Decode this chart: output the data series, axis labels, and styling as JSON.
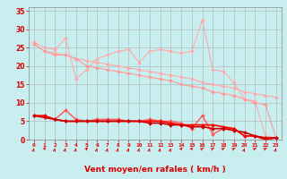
{
  "bg_color": "#c8eef0",
  "grid_color": "#b0b0b0",
  "xlabel": "Vent moyen/en rafales ( km/h )",
  "x_ticks": [
    0,
    1,
    2,
    3,
    4,
    5,
    6,
    7,
    8,
    9,
    10,
    11,
    12,
    13,
    14,
    15,
    16,
    17,
    18,
    19,
    20,
    21,
    22,
    23
  ],
  "ylim": [
    0,
    36
  ],
  "yticks": [
    0,
    5,
    10,
    15,
    20,
    25,
    30,
    35
  ],
  "xlim": [
    -0.5,
    23.5
  ],
  "lines": [
    {
      "color": "#ffaaaa",
      "linewidth": 0.8,
      "marker": "D",
      "markersize": 2.0,
      "data_x": [
        0,
        1,
        2,
        3,
        4,
        5,
        6,
        7,
        8,
        9,
        10,
        11,
        12,
        13,
        14,
        15,
        16,
        17,
        18,
        19,
        20,
        21,
        22,
        23
      ],
      "data_y": [
        26.5,
        25.0,
        24.5,
        27.5,
        16.5,
        19.0,
        22.0,
        23.0,
        24.0,
        24.5,
        21.0,
        24.0,
        24.5,
        24.0,
        23.5,
        24.0,
        32.5,
        19.0,
        18.5,
        15.5,
        11.0,
        10.5,
        1.0,
        0.5
      ]
    },
    {
      "color": "#ffaaaa",
      "linewidth": 0.8,
      "marker": "D",
      "markersize": 2.0,
      "data_x": [
        0,
        1,
        2,
        3,
        4,
        5,
        6,
        7,
        8,
        9,
        10,
        11,
        12,
        13,
        14,
        15,
        16,
        17,
        18,
        19,
        20,
        21,
        22,
        23
      ],
      "data_y": [
        26.0,
        24.0,
        23.5,
        23.0,
        22.0,
        21.5,
        21.0,
        20.5,
        20.0,
        19.5,
        19.0,
        18.5,
        18.0,
        17.5,
        17.0,
        16.5,
        15.5,
        15.0,
        14.5,
        14.0,
        13.0,
        12.5,
        12.0,
        11.5
      ]
    },
    {
      "color": "#ff9999",
      "linewidth": 0.8,
      "marker": "D",
      "markersize": 2.0,
      "data_x": [
        0,
        1,
        2,
        3,
        4,
        5,
        6,
        7,
        8,
        9,
        10,
        11,
        12,
        13,
        14,
        15,
        16,
        17,
        18,
        19,
        20,
        21,
        22,
        23
      ],
      "data_y": [
        26.0,
        24.0,
        23.0,
        23.0,
        22.0,
        20.0,
        19.5,
        19.0,
        18.5,
        18.0,
        17.5,
        17.0,
        16.5,
        16.0,
        15.0,
        14.5,
        14.0,
        13.0,
        12.5,
        12.0,
        11.0,
        10.0,
        9.5,
        0.5
      ]
    },
    {
      "color": "#ff5555",
      "linewidth": 1.0,
      "marker": "D",
      "markersize": 2.0,
      "data_x": [
        0,
        1,
        2,
        3,
        4,
        5,
        6,
        7,
        8,
        9,
        10,
        11,
        12,
        13,
        14,
        15,
        16,
        17,
        18,
        19,
        20,
        21,
        22,
        23
      ],
      "data_y": [
        6.5,
        6.5,
        5.5,
        8.0,
        5.5,
        5.0,
        5.5,
        5.5,
        5.5,
        5.0,
        5.0,
        5.5,
        5.0,
        5.0,
        4.5,
        3.0,
        6.5,
        1.5,
        3.0,
        3.0,
        1.0,
        1.0,
        0.0,
        0.5
      ]
    },
    {
      "color": "#ff0000",
      "linewidth": 1.2,
      "marker": "D",
      "markersize": 2.0,
      "data_x": [
        0,
        1,
        2,
        3,
        4,
        5,
        6,
        7,
        8,
        9,
        10,
        11,
        12,
        13,
        14,
        15,
        16,
        17,
        18,
        19,
        20,
        21,
        22,
        23
      ],
      "data_y": [
        6.5,
        6.5,
        5.5,
        5.0,
        5.0,
        5.0,
        5.0,
        5.0,
        5.0,
        5.0,
        5.0,
        5.0,
        5.0,
        4.5,
        4.0,
        4.0,
        4.0,
        4.0,
        3.5,
        3.0,
        1.0,
        1.0,
        0.0,
        0.5
      ]
    },
    {
      "color": "#cc0000",
      "linewidth": 1.2,
      "marker": "D",
      "markersize": 2.0,
      "data_x": [
        0,
        1,
        2,
        3,
        4,
        5,
        6,
        7,
        8,
        9,
        10,
        11,
        12,
        13,
        14,
        15,
        16,
        17,
        18,
        19,
        20,
        21,
        22,
        23
      ],
      "data_y": [
        6.5,
        6.0,
        5.5,
        5.0,
        5.0,
        5.0,
        5.0,
        5.0,
        5.0,
        5.0,
        5.0,
        4.5,
        4.5,
        4.0,
        4.0,
        3.5,
        3.5,
        3.0,
        3.0,
        2.5,
        2.0,
        1.0,
        0.5,
        0.5
      ]
    }
  ],
  "arrows_angles": [
    45,
    30,
    45,
    45,
    45,
    20,
    45,
    45,
    45,
    45,
    45,
    45,
    45,
    45,
    20,
    20,
    10,
    10,
    10,
    10,
    45,
    10,
    10,
    45
  ],
  "tick_color": "#dd0000",
  "label_color": "#dd0000",
  "spine_color": "#888888",
  "label_fontsize": 6.5,
  "tick_fontsize_x": 4.5,
  "tick_fontsize_y": 5.5
}
